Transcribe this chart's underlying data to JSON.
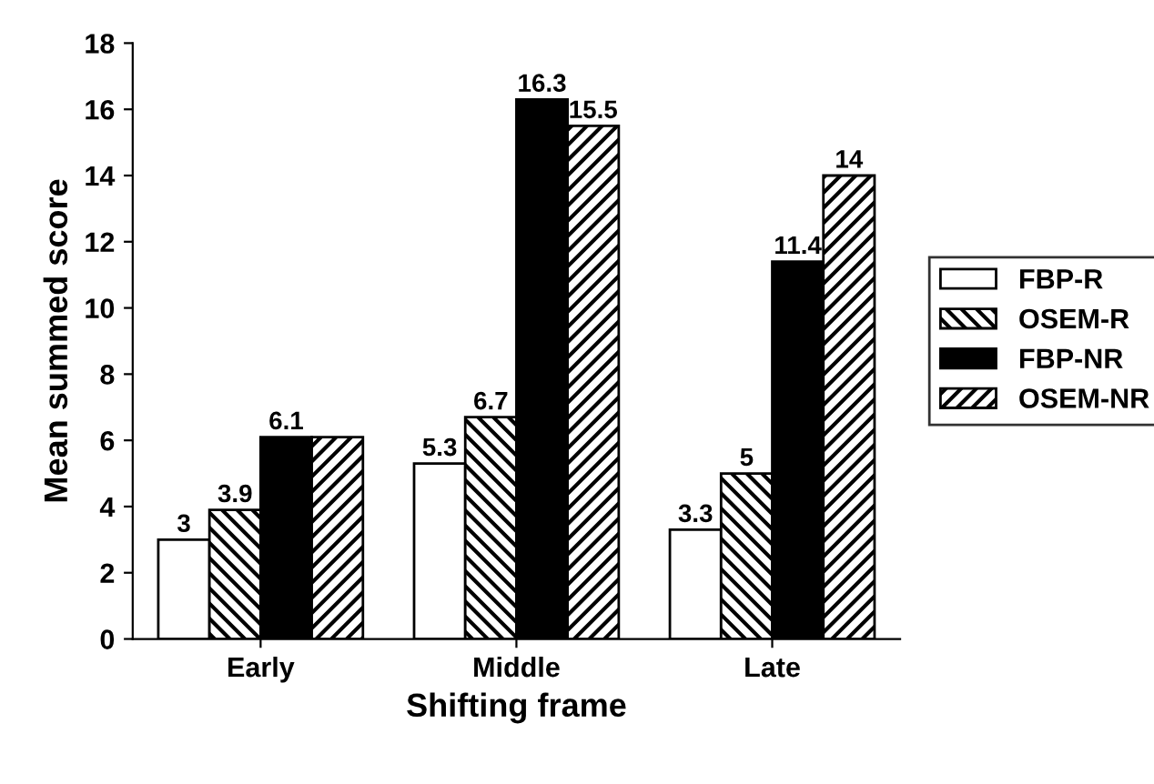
{
  "chart_data": {
    "type": "bar",
    "xlabel": "Shifting frame",
    "ylabel": "Mean summed score",
    "categories": [
      "Early",
      "Middle",
      "Late"
    ],
    "series": [
      {
        "name": "FBP-R",
        "color": "#ffffff",
        "values": [
          3,
          5.3,
          3.3
        ],
        "value_labels": [
          "3",
          "5.3",
          "3.3"
        ]
      },
      {
        "name": "OSEM-R",
        "color": "#000000",
        "values": [
          3.9,
          6.7,
          5
        ],
        "value_labels": [
          "3.9",
          "6.7",
          "5"
        ]
      },
      {
        "name": "FBP-NR",
        "color": "#000000",
        "values": [
          6.1,
          16.3,
          11.4
        ],
        "value_labels": [
          "6.1",
          "16.3",
          "11.4"
        ]
      },
      {
        "name": "OSEM-NR",
        "color": "#000000",
        "values": [
          6.1,
          15.5,
          14
        ],
        "value_labels": [
          null,
          "15.5",
          "14"
        ]
      }
    ],
    "ylim": [
      0,
      18
    ],
    "yticks": [
      0,
      2,
      4,
      6,
      8,
      10,
      12,
      14,
      16,
      18
    ],
    "grid": false,
    "legend": "right"
  }
}
